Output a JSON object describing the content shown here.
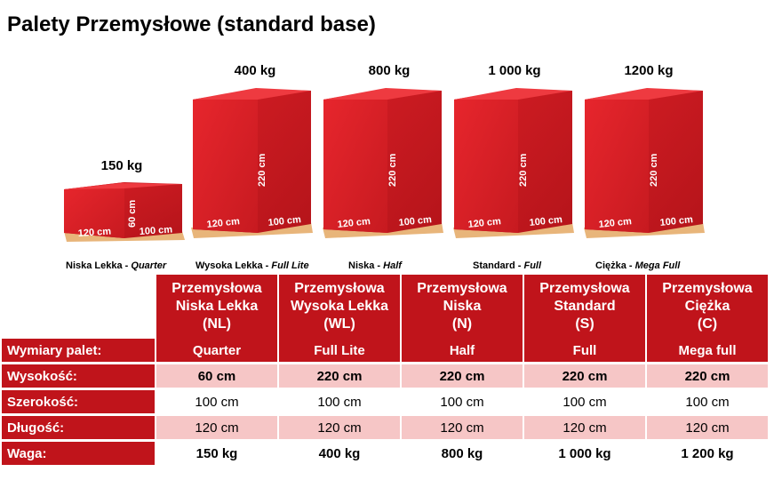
{
  "title": "Palety Przemysłowe (standard base)",
  "pallets": [
    {
      "weight": "150 kg",
      "name": "Niska Lekka",
      "variant": "Quarter",
      "height": "60 cm",
      "width": "100 cm",
      "length": "120 cm"
    },
    {
      "weight": "400 kg",
      "name": "Wysoka Lekka",
      "variant": "Full Lite",
      "height": "220 cm",
      "width": "100 cm",
      "length": "120 cm"
    },
    {
      "weight": "800 kg",
      "name": "Niska",
      "variant": "Half",
      "height": "220 cm",
      "width": "100 cm",
      "length": "120 cm"
    },
    {
      "weight": "1 000 kg",
      "name": "Standard",
      "variant": "Full",
      "height": "220 cm",
      "width": "100 cm",
      "length": "120 cm"
    },
    {
      "weight": "1200 kg",
      "name": "Ciężka",
      "variant": "Mega Full",
      "height": "220 cm",
      "width": "100 cm",
      "length": "120 cm"
    }
  ],
  "table": {
    "columns": [
      {
        "line1": "Przemysłowa",
        "line2": "Niska Lekka",
        "line3": "(NL)"
      },
      {
        "line1": "Przemysłowa",
        "line2": "Wysoka Lekka",
        "line3": "(WL)"
      },
      {
        "line1": "Przemysłowa",
        "line2": "Niska",
        "line3": "(N)"
      },
      {
        "line1": "Przemysłowa",
        "line2": "Standard",
        "line3": "(S)"
      },
      {
        "line1": "Przemysłowa",
        "line2": "Ciężka",
        "line3": "(C)"
      }
    ],
    "rows": [
      {
        "label": "Wymiary palet:",
        "values": [
          "Quarter",
          "Full Lite",
          "Half",
          "Full",
          "Mega full"
        ]
      },
      {
        "label": "Wysokość:",
        "values": [
          "60 cm",
          "220 cm",
          "220 cm",
          "220 cm",
          "220 cm"
        ]
      },
      {
        "label": "Szerokość:",
        "values": [
          "100 cm",
          "100 cm",
          "100 cm",
          "100 cm",
          "100 cm"
        ]
      },
      {
        "label": "Długość:",
        "values": [
          "120 cm",
          "120 cm",
          "120 cm",
          "120 cm",
          "120 cm"
        ]
      },
      {
        "label": "Waga:",
        "values": [
          "150 kg",
          "400 kg",
          "800 kg",
          "1 000 kg",
          "1 200 kg"
        ]
      }
    ]
  },
  "colors": {
    "primary_red": "#c0141b",
    "light_pink": "#f6c6c6",
    "box_red": "#e0242b",
    "wood": "#e8b57a"
  }
}
